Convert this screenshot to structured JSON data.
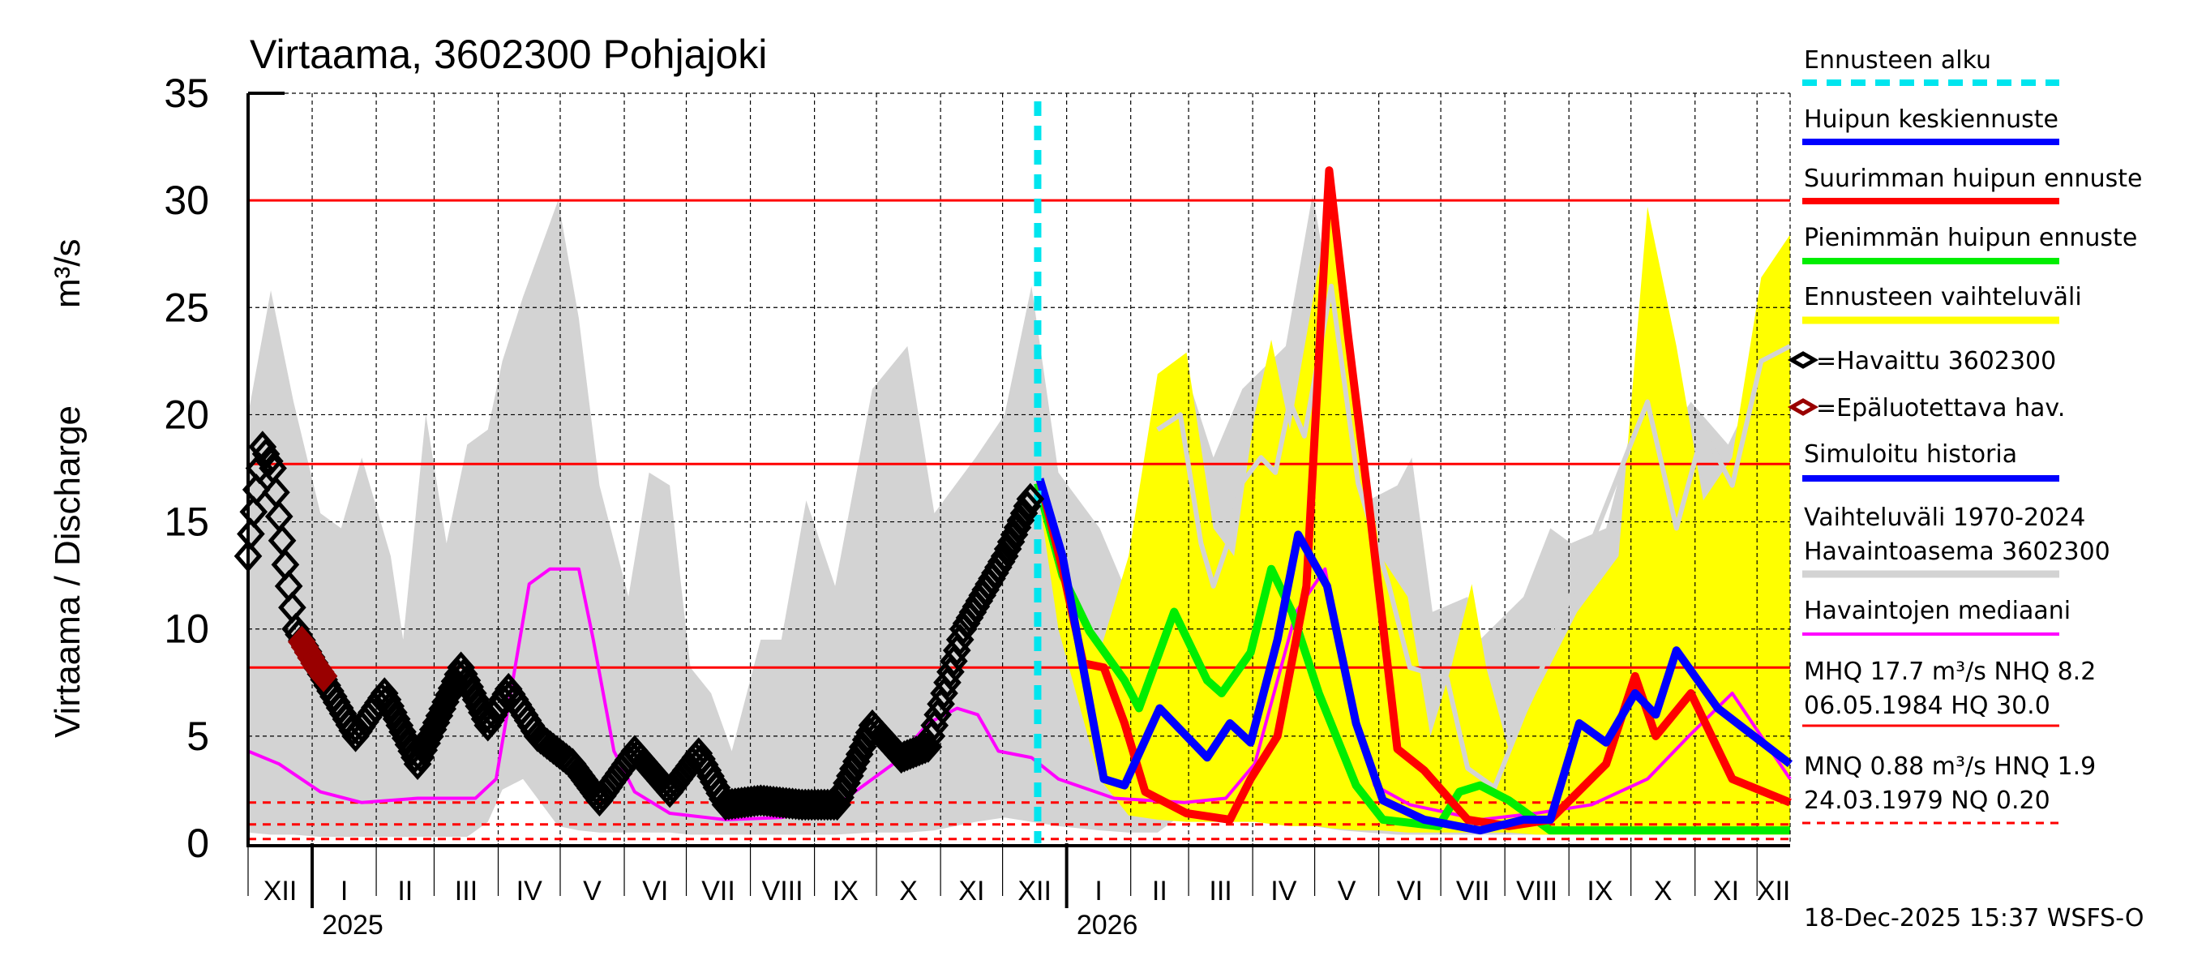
{
  "chart_data": {
    "type": "line",
    "title": "Virtaama, 3602300 Pohjajoki",
    "ylabel": "Virtaama / Discharge",
    "yunit": "m³/s",
    "ylim": [
      0,
      35
    ],
    "yticks": [
      "0",
      "5",
      "10",
      "15",
      "20",
      "25",
      "30",
      "35"
    ],
    "x_origin": "2024-12-01",
    "x_unit": "days since x_origin",
    "xlim": [
      0,
      746
    ],
    "months": [
      {
        "label": "XII",
        "start": 0
      },
      {
        "label": "I",
        "start": 31
      },
      {
        "label": "II",
        "start": 62
      },
      {
        "label": "III",
        "start": 90
      },
      {
        "label": "IV",
        "start": 121
      },
      {
        "label": "V",
        "start": 151
      },
      {
        "label": "VI",
        "start": 182
      },
      {
        "label": "VII",
        "start": 212
      },
      {
        "label": "VIII",
        "start": 243
      },
      {
        "label": "IX",
        "start": 274
      },
      {
        "label": "X",
        "start": 304
      },
      {
        "label": "XI",
        "start": 335
      },
      {
        "label": "XII",
        "start": 365
      },
      {
        "label": "I",
        "start": 396
      },
      {
        "label": "II",
        "start": 427
      },
      {
        "label": "III",
        "start": 455
      },
      {
        "label": "IV",
        "start": 486
      },
      {
        "label": "V",
        "start": 516
      },
      {
        "label": "VI",
        "start": 547
      },
      {
        "label": "VII",
        "start": 577
      },
      {
        "label": "VIII",
        "start": 608
      },
      {
        "label": "IX",
        "start": 639
      },
      {
        "label": "X",
        "start": 669
      },
      {
        "label": "XI",
        "start": 700
      },
      {
        "label": "XII",
        "start": 730
      }
    ],
    "years": [
      {
        "label": "2025",
        "start": 31
      },
      {
        "label": "2026",
        "start": 396
      }
    ],
    "forecast_start": 382,
    "reference_lines": [
      {
        "name": "HQ",
        "value": 30.0,
        "style": "solid"
      },
      {
        "name": "MHQ",
        "value": 17.7,
        "style": "solid"
      },
      {
        "name": "NHQ",
        "value": 8.2,
        "style": "solid"
      },
      {
        "name": "HNQ",
        "value": 1.9,
        "style": "dashed"
      },
      {
        "name": "MNQ",
        "value": 0.88,
        "style": "dashed"
      },
      {
        "name": "NQ",
        "value": 0.2,
        "style": "dashed"
      }
    ],
    "series": [
      {
        "name": "Vaihteluväli 1970-2024 Havaintoasema 3602300",
        "kind": "band",
        "color": "#d3d3d3",
        "x": [
          0,
          11,
          22,
          35,
          45,
          55,
          69,
          75,
          86,
          96,
          106,
          116,
          123,
          133,
          150,
          160,
          170,
          184,
          194,
          204,
          214,
          224,
          234,
          248,
          258,
          270,
          284,
          302,
          319,
          332,
          352,
          366,
          379,
          392,
          412,
          426,
          440,
          454,
          467,
          481,
          502,
          515,
          529,
          542,
          556,
          563,
          573,
          590,
          596,
          617,
          630,
          640,
          657,
          671,
          678,
          684,
          698,
          716,
          746
        ],
        "upper": [
          20,
          25.8,
          20.6,
          15.4,
          14.7,
          18,
          13.4,
          9.5,
          20,
          14,
          18.6,
          19.3,
          22.5,
          25.5,
          30,
          24.5,
          16.7,
          11.5,
          17.3,
          16.7,
          8.2,
          7,
          4.3,
          9.5,
          9.5,
          16,
          12,
          21.2,
          23.2,
          15.4,
          18,
          20,
          26,
          17.3,
          14.7,
          11.5,
          18.6,
          21.9,
          18,
          21.2,
          23.2,
          30.3,
          22.5,
          16,
          16.7,
          18,
          10.8,
          11.5,
          9.5,
          11.5,
          14.7,
          14,
          14.7,
          20,
          23.2,
          18.6,
          20.6,
          18.6,
          24.5
        ],
        "lower": [
          0.5,
          0.4,
          0.4,
          0.3,
          0.3,
          0.3,
          0.3,
          0.3,
          0.3,
          0.3,
          0.3,
          1.0,
          2.5,
          3.0,
          0.8,
          0.6,
          0.5,
          0.5,
          0.5,
          0.5,
          0.4,
          0.4,
          0.4,
          0.4,
          0.4,
          0.4,
          0.4,
          0.5,
          0.5,
          0.6,
          1.0,
          1.2,
          1.0,
          0.8,
          0.6,
          0.5,
          0.5,
          1.5,
          4.5,
          3.5,
          1.5,
          0.8,
          0.6,
          0.5,
          0.4,
          0.4,
          0.4,
          0.4,
          0.4,
          0.4,
          0.4,
          0.4,
          0.4,
          0.5,
          0.5,
          0.6,
          0.6,
          0.6,
          0.6
        ]
      },
      {
        "name": "Ennusteen vaihteluväli",
        "kind": "band",
        "color": "#ffff00",
        "x": [
          382,
          392,
          412,
          426,
          440,
          454,
          467,
          477,
          487,
          495,
          504,
          517,
          524,
          537,
          548,
          561,
          572,
          582,
          592,
          599,
          610,
          623,
          643,
          663,
          677,
          691,
          704,
          718,
          732,
          746
        ],
        "upper": [
          17.5,
          12.8,
          8.9,
          13.4,
          21.9,
          22.9,
          14.7,
          13.4,
          20,
          23.5,
          19.3,
          26.4,
          29.7,
          20,
          13.4,
          11.5,
          5,
          8.2,
          12.1,
          8.2,
          4.3,
          7,
          10.8,
          13.4,
          29.7,
          23.2,
          16,
          18,
          26.4,
          28.4
        ],
        "lower": [
          16.5,
          10,
          3,
          1.3,
          1.1,
          1.0,
          1.0,
          1.0,
          1.0,
          0.9,
          0.8,
          0.8,
          0.7,
          0.6,
          0.6,
          0.5,
          0.5,
          0.5,
          0.5,
          0.5,
          0.5,
          0.4,
          0.4,
          0.4,
          0.4,
          0.4,
          0.4,
          0.4,
          0.4,
          0.4
        ]
      },
      {
        "name": "Forecast band mean (light grey line)",
        "kind": "line",
        "color": "#d3d3d3",
        "x": [
          440,
          451,
          461,
          467,
          474,
          480,
          490,
          497,
          504,
          511,
          524,
          537,
          552,
          562,
          580,
          590,
          603,
          677,
          691,
          704,
          718,
          732,
          746
        ],
        "y": [
          19.3,
          20,
          14,
          12,
          14,
          16.7,
          18,
          17.3,
          20.6,
          19,
          26,
          16.8,
          12,
          8.2,
          7.7,
          3.5,
          2.6,
          20.6,
          14.7,
          19.3,
          16.7,
          22.5,
          23.2
        ]
      },
      {
        "name": "Havaintojen mediaani",
        "kind": "line",
        "color": "#ff00ff",
        "x": [
          0,
          15,
          35,
          55,
          82,
          110,
          120,
          136,
          146,
          160,
          167,
          177,
          187,
          204,
          231,
          258,
          285,
          312,
          329,
          343,
          353,
          363,
          379,
          392,
          419,
          453,
          473,
          487,
          507,
          521,
          531,
          545,
          562,
          596,
          623,
          650,
          677,
          697,
          718,
          746
        ],
        "y": [
          4.3,
          3.7,
          2.4,
          1.9,
          2.1,
          2.1,
          3.0,
          12.1,
          12.8,
          12.8,
          9.5,
          4.3,
          2.4,
          1.4,
          1.1,
          1.2,
          1.8,
          3.7,
          5.6,
          6.3,
          6.0,
          4.3,
          4.0,
          3.0,
          2.1,
          1.9,
          2.1,
          3.7,
          10.8,
          12.8,
          7.6,
          2.7,
          1.8,
          1.1,
          1.4,
          1.8,
          3.0,
          5.0,
          7.0,
          3.0
        ]
      },
      {
        "name": "Pienimmän huipun ennuste",
        "kind": "line",
        "color": "#00ee00",
        "x": [
          382,
          394,
          407,
          424,
          431,
          448,
          464,
          471,
          485,
          495,
          505,
          518,
          536,
          549,
          576,
          586,
          596,
          610,
          630,
          746
        ],
        "y": [
          16.8,
          12.5,
          9.9,
          7.6,
          6.3,
          10.8,
          7.6,
          7.0,
          8.9,
          12.8,
          10.8,
          7.0,
          2.7,
          1.1,
          0.8,
          2.4,
          2.7,
          2.0,
          0.6,
          0.6
        ]
      },
      {
        "name": "Suurimman huipun ennuste",
        "kind": "line",
        "color": "#ff0000",
        "x": [
          383,
          394,
          404,
          414,
          424,
          434,
          454,
          475,
          485,
          498,
          512,
          523,
          532,
          542,
          556,
          569,
          590,
          610,
          630,
          657,
          671,
          681,
          698,
          718,
          746
        ],
        "y": [
          17,
          12.8,
          8.4,
          8.2,
          5.6,
          2.4,
          1.4,
          1.1,
          3.0,
          5.0,
          12,
          31.4,
          23.8,
          16,
          4.4,
          3.4,
          1.1,
          0.8,
          1.1,
          3.7,
          7.8,
          5.0,
          7.0,
          3.0,
          1.9
        ]
      },
      {
        "name": "Huipun keskiennuste",
        "kind": "line",
        "color": "#0000ff",
        "x": [
          383,
          394,
          404,
          414,
          424,
          441,
          464,
          475,
          485,
          498,
          508,
          522,
          536,
          549,
          569,
          596,
          617,
          630,
          644,
          657,
          671,
          681,
          691,
          711,
          746
        ],
        "y": [
          17,
          13.4,
          8.2,
          3.0,
          2.7,
          6.3,
          4.0,
          5.6,
          4.7,
          9.5,
          14.4,
          12,
          5.6,
          2.0,
          1.1,
          0.6,
          1.1,
          1.1,
          5.6,
          4.7,
          7.0,
          6.0,
          9.0,
          6.3,
          3.7
        ]
      },
      {
        "name": "Havaittu 3602300",
        "kind": "markers",
        "color": "#000000",
        "x": [
          0,
          4,
          7,
          12,
          18,
          23,
          52,
          66,
          82,
          103,
          116,
          126,
          140,
          157,
          170,
          187,
          204,
          218,
          231,
          248,
          268,
          285,
          302,
          316,
          329,
          346,
          366,
          380
        ],
        "y": [
          13.4,
          16.5,
          18.5,
          17.5,
          13,
          10,
          5,
          7,
          3.7,
          8.2,
          5.5,
          7.2,
          5,
          3.7,
          2,
          4.3,
          2.4,
          4.2,
          1.8,
          2,
          1.8,
          1.8,
          5.5,
          4,
          4.5,
          10,
          13.4,
          16.4
        ]
      },
      {
        "name": "Epäluotettava hav.",
        "kind": "markers",
        "color": "#990000",
        "x": [
          26,
          29,
          32,
          35,
          38
        ],
        "y": [
          9.4,
          8.9,
          8.4,
          8.0,
          7.6
        ]
      }
    ]
  },
  "legend": {
    "forecast_start": "Ennusteen alku",
    "mean_peak": "Huipun keskiennuste",
    "max_peak": "Suurimman huipun ennuste",
    "min_peak": "Pienimmän huipun ennuste",
    "forecast_range": "Ennusteen vaihteluväli",
    "observed": "=Havaittu 3602300",
    "unreliable": "=Epäluotettava hav.",
    "simulated": "Simuloitu historia",
    "range_line1": "Vaihteluväli 1970-2024",
    "range_line2": "Havaintoasema 3602300",
    "median": "Havaintojen mediaani",
    "mhq_line1": "MHQ 17.7 m³/s NHQ  8.2",
    "mhq_line2": "06.05.1984 HQ 30.0",
    "mnq_line1": "MNQ 0.88 m³/s HNQ  1.9",
    "mnq_line2": "24.03.1979 NQ 0.20"
  },
  "footer": "18-Dec-2025 15:37 WSFS-O",
  "colors": {
    "cyan": "#00e5ee",
    "red": "#ff0000",
    "blue": "#0000ff",
    "green": "#00ee00",
    "yellow": "#ffff00",
    "grey": "#d3d3d3",
    "magenta": "#ff00ff",
    "darkred": "#990000"
  }
}
